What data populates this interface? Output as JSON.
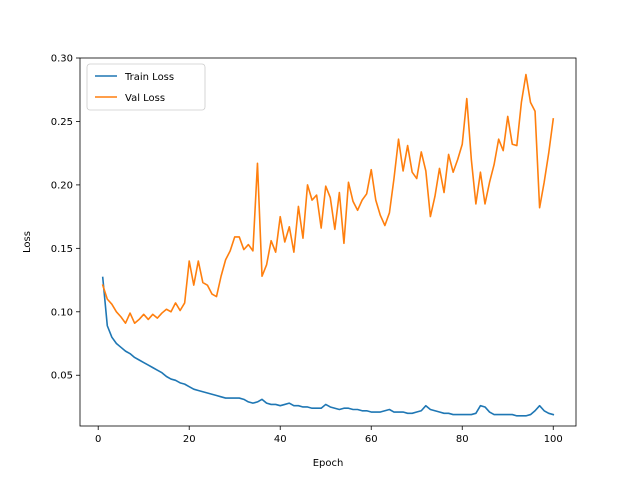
{
  "chart_data": {
    "type": "line",
    "title": "",
    "xlabel": "Epoch",
    "ylabel": "Loss",
    "xlim": [
      -4,
      105
    ],
    "ylim": [
      0.01,
      0.3
    ],
    "xticks": [
      0,
      20,
      40,
      60,
      80,
      100
    ],
    "yticks": [
      0.05,
      0.1,
      0.15,
      0.2,
      0.25,
      0.3
    ],
    "xtick_labels": [
      "0",
      "20",
      "40",
      "60",
      "80",
      "100"
    ],
    "ytick_labels": [
      "0.05",
      "0.10",
      "0.15",
      "0.20",
      "0.25",
      "0.30"
    ],
    "grid": false,
    "legend": "upper-left",
    "x": [
      1,
      2,
      3,
      4,
      5,
      6,
      7,
      8,
      9,
      10,
      11,
      12,
      13,
      14,
      15,
      16,
      17,
      18,
      19,
      20,
      21,
      22,
      23,
      24,
      25,
      26,
      27,
      28,
      29,
      30,
      31,
      32,
      33,
      34,
      35,
      36,
      37,
      38,
      39,
      40,
      41,
      42,
      43,
      44,
      45,
      46,
      47,
      48,
      49,
      50,
      51,
      52,
      53,
      54,
      55,
      56,
      57,
      58,
      59,
      60,
      61,
      62,
      63,
      64,
      65,
      66,
      67,
      68,
      69,
      70,
      71,
      72,
      73,
      74,
      75,
      76,
      77,
      78,
      79,
      80,
      81,
      82,
      83,
      84,
      85,
      86,
      87,
      88,
      89,
      90,
      91,
      92,
      93,
      94,
      95,
      96,
      97,
      98,
      99,
      100
    ],
    "series": [
      {
        "name": "Train Loss",
        "color": "#1f77b4",
        "values": [
          0.127,
          0.089,
          0.08,
          0.075,
          0.072,
          0.069,
          0.067,
          0.064,
          0.062,
          0.06,
          0.058,
          0.056,
          0.054,
          0.052,
          0.049,
          0.047,
          0.046,
          0.044,
          0.043,
          0.041,
          0.039,
          0.038,
          0.037,
          0.036,
          0.035,
          0.034,
          0.033,
          0.032,
          0.032,
          0.032,
          0.032,
          0.031,
          0.029,
          0.028,
          0.029,
          0.031,
          0.028,
          0.027,
          0.027,
          0.026,
          0.027,
          0.028,
          0.026,
          0.026,
          0.025,
          0.025,
          0.024,
          0.024,
          0.024,
          0.027,
          0.025,
          0.024,
          0.023,
          0.024,
          0.024,
          0.023,
          0.023,
          0.022,
          0.022,
          0.021,
          0.021,
          0.021,
          0.022,
          0.023,
          0.021,
          0.021,
          0.021,
          0.02,
          0.02,
          0.021,
          0.022,
          0.026,
          0.023,
          0.022,
          0.021,
          0.02,
          0.02,
          0.019,
          0.019,
          0.019,
          0.019,
          0.019,
          0.02,
          0.026,
          0.025,
          0.021,
          0.019,
          0.019,
          0.019,
          0.019,
          0.019,
          0.018,
          0.018,
          0.018,
          0.019,
          0.022,
          0.026,
          0.022,
          0.02,
          0.019
        ]
      },
      {
        "name": "Val Loss",
        "color": "#ff7f0e",
        "values": [
          0.121,
          0.11,
          0.106,
          0.1,
          0.096,
          0.091,
          0.099,
          0.091,
          0.094,
          0.098,
          0.094,
          0.098,
          0.095,
          0.099,
          0.102,
          0.1,
          0.107,
          0.101,
          0.107,
          0.14,
          0.121,
          0.14,
          0.123,
          0.121,
          0.114,
          0.112,
          0.128,
          0.141,
          0.148,
          0.159,
          0.159,
          0.149,
          0.153,
          0.148,
          0.217,
          0.128,
          0.137,
          0.156,
          0.147,
          0.175,
          0.155,
          0.167,
          0.147,
          0.183,
          0.158,
          0.2,
          0.188,
          0.192,
          0.166,
          0.199,
          0.19,
          0.165,
          0.194,
          0.154,
          0.202,
          0.187,
          0.18,
          0.188,
          0.193,
          0.212,
          0.188,
          0.176,
          0.168,
          0.178,
          0.205,
          0.236,
          0.211,
          0.231,
          0.21,
          0.205,
          0.226,
          0.211,
          0.175,
          0.191,
          0.213,
          0.194,
          0.224,
          0.21,
          0.22,
          0.232,
          0.268,
          0.22,
          0.185,
          0.21,
          0.185,
          0.202,
          0.216,
          0.236,
          0.227,
          0.254,
          0.232,
          0.231,
          0.265,
          0.287,
          0.265,
          0.258,
          0.182,
          0.202,
          0.225,
          0.252
        ]
      }
    ]
  }
}
